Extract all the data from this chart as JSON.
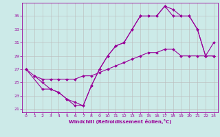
{
  "xlabel": "Windchill (Refroidissement éolien,°C)",
  "bg_color": "#cceae8",
  "line_color": "#990099",
  "grid_color": "#bbbbbb",
  "xlim": [
    -0.5,
    23.5
  ],
  "ylim": [
    20.5,
    37.0
  ],
  "xticks": [
    0,
    1,
    2,
    3,
    4,
    5,
    6,
    7,
    8,
    9,
    10,
    11,
    12,
    13,
    14,
    15,
    16,
    17,
    18,
    19,
    20,
    21,
    22,
    23
  ],
  "yticks": [
    21,
    23,
    25,
    27,
    29,
    31,
    33,
    35
  ],
  "line1_x": [
    0,
    1,
    2,
    3,
    4,
    5,
    6,
    7,
    8,
    9,
    10,
    11,
    12,
    13,
    14,
    15,
    16,
    17,
    18,
    19,
    20,
    21,
    22,
    23
  ],
  "line1_y": [
    27,
    26,
    25,
    24,
    23.5,
    22.5,
    21.5,
    21.5,
    24.5,
    27,
    29,
    30.5,
    31,
    33,
    35,
    35,
    35,
    36.5,
    36,
    35,
    35,
    33,
    29,
    29
  ],
  "line2_x": [
    1,
    2,
    3,
    4,
    5,
    6,
    7,
    8,
    9,
    10,
    11,
    12,
    13,
    14,
    15,
    16,
    17,
    18,
    19,
    20,
    21,
    22,
    23
  ],
  "line2_y": [
    26,
    25.5,
    25.5,
    25.5,
    25.5,
    25.5,
    26,
    26,
    26.5,
    27,
    27.5,
    28,
    28.5,
    29,
    29.5,
    29.5,
    30,
    30,
    29,
    29,
    29,
    29,
    29
  ],
  "line3_x": [
    0,
    2,
    3,
    4,
    5,
    6,
    7,
    8,
    9,
    10,
    11,
    12,
    13,
    14,
    15,
    16,
    17,
    18,
    19,
    20,
    21,
    22,
    23
  ],
  "line3_y": [
    27,
    24,
    24,
    23.5,
    22.5,
    22,
    21.5,
    24.5,
    27,
    29,
    30.5,
    31,
    33,
    35,
    35,
    35,
    36.5,
    35,
    35,
    35,
    33,
    29,
    31
  ]
}
